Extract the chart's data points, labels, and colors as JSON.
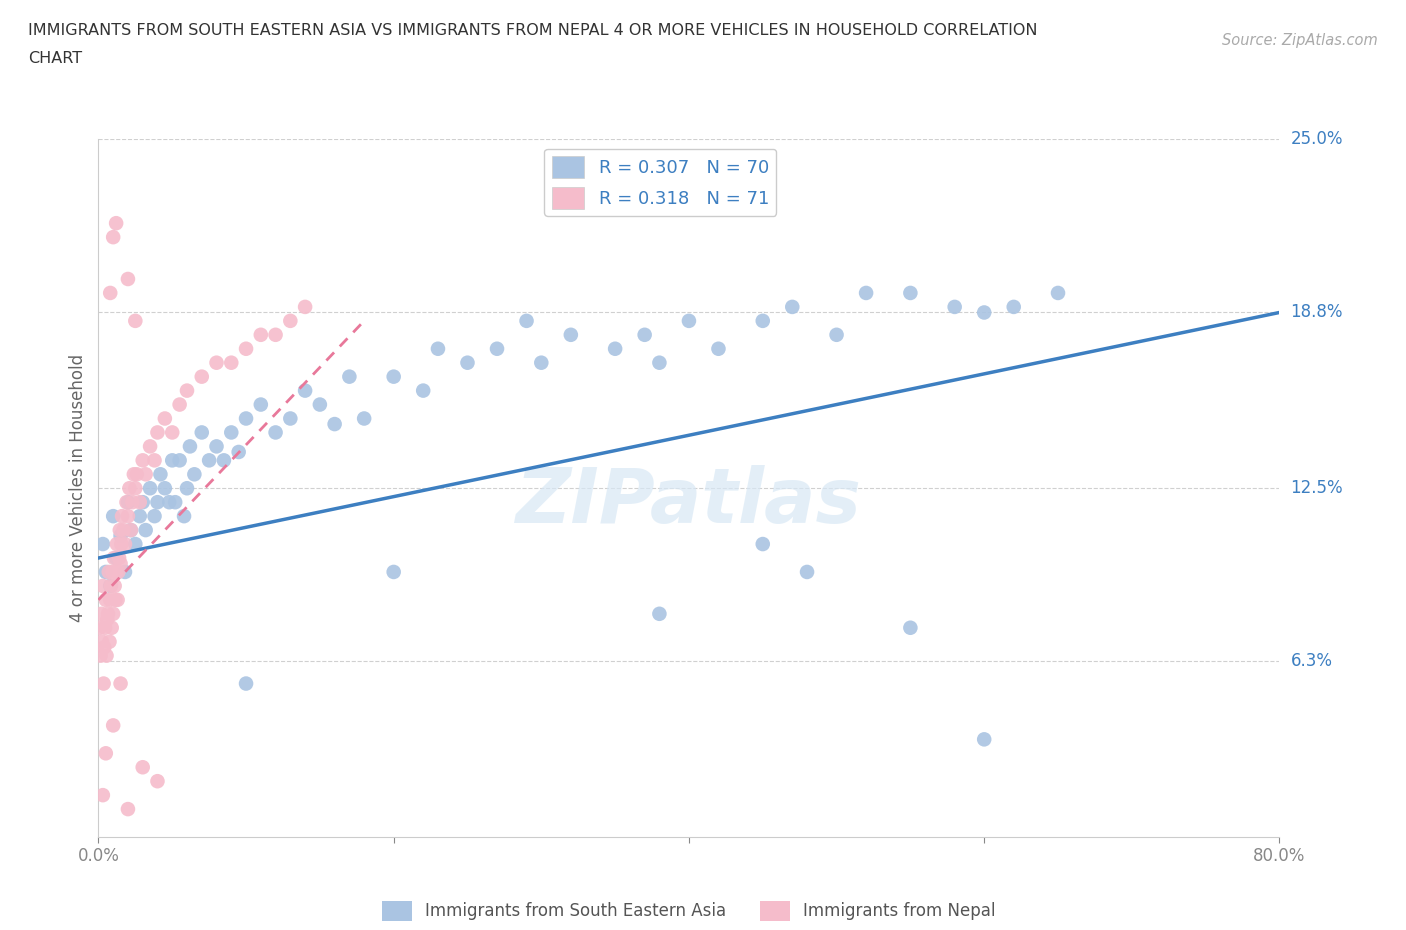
{
  "title_line1": "IMMIGRANTS FROM SOUTH EASTERN ASIA VS IMMIGRANTS FROM NEPAL 4 OR MORE VEHICLES IN HOUSEHOLD CORRELATION",
  "title_line2": "CHART",
  "source_text": "Source: ZipAtlas.com",
  "ylabel": "4 or more Vehicles in Household",
  "xlim": [
    0.0,
    80.0
  ],
  "ylim": [
    0.0,
    25.0
  ],
  "ytick_labels_right": [
    "25.0%",
    "18.8%",
    "12.5%",
    "6.3%"
  ],
  "ytick_values_right": [
    25.0,
    18.8,
    12.5,
    6.3
  ],
  "watermark": "ZIPatlas",
  "r_blue": 0.307,
  "n_blue": 70,
  "r_pink": 0.318,
  "n_pink": 71,
  "blue_color": "#aac4e2",
  "pink_color": "#f5bccb",
  "blue_line_color": "#3d7fc1",
  "pink_line_color": "#e8789a",
  "legend_label_blue": "Immigrants from South Eastern Asia",
  "legend_label_pink": "Immigrants from Nepal",
  "blue_trend": [
    10.0,
    18.8
  ],
  "pink_trend_x": [
    0,
    18
  ],
  "pink_trend_y": [
    8.5,
    18.5
  ],
  "blue_scatter_x": [
    0.3,
    0.5,
    0.8,
    1.0,
    1.2,
    1.5,
    1.8,
    2.0,
    2.2,
    2.5,
    2.8,
    3.0,
    3.2,
    3.5,
    3.8,
    4.0,
    4.2,
    4.5,
    4.8,
    5.0,
    5.2,
    5.5,
    5.8,
    6.0,
    6.2,
    6.5,
    7.0,
    7.5,
    8.0,
    8.5,
    9.0,
    9.5,
    10.0,
    11.0,
    12.0,
    13.0,
    14.0,
    15.0,
    16.0,
    17.0,
    18.0,
    20.0,
    22.0,
    23.0,
    25.0,
    27.0,
    29.0,
    30.0,
    32.0,
    35.0,
    37.0,
    38.0,
    40.0,
    42.0,
    45.0,
    47.0,
    50.0,
    52.0,
    55.0,
    58.0,
    60.0,
    62.0,
    65.0,
    48.0,
    45.0,
    55.0,
    38.0,
    20.0,
    10.0,
    60.0
  ],
  "blue_scatter_y": [
    10.5,
    9.5,
    9.0,
    11.5,
    10.0,
    10.8,
    9.5,
    12.0,
    11.0,
    10.5,
    11.5,
    12.0,
    11.0,
    12.5,
    11.5,
    12.0,
    13.0,
    12.5,
    12.0,
    13.5,
    12.0,
    13.5,
    11.5,
    12.5,
    14.0,
    13.0,
    14.5,
    13.5,
    14.0,
    13.5,
    14.5,
    13.8,
    15.0,
    15.5,
    14.5,
    15.0,
    16.0,
    15.5,
    14.8,
    16.5,
    15.0,
    16.5,
    16.0,
    17.5,
    17.0,
    17.5,
    18.5,
    17.0,
    18.0,
    17.5,
    18.0,
    17.0,
    18.5,
    17.5,
    18.5,
    19.0,
    18.0,
    19.5,
    19.5,
    19.0,
    18.8,
    19.0,
    19.5,
    9.5,
    10.5,
    7.5,
    8.0,
    9.5,
    5.5,
    3.5
  ],
  "pink_scatter_x": [
    0.1,
    0.15,
    0.2,
    0.25,
    0.3,
    0.35,
    0.4,
    0.45,
    0.5,
    0.55,
    0.6,
    0.65,
    0.7,
    0.75,
    0.8,
    0.85,
    0.9,
    0.95,
    1.0,
    1.05,
    1.1,
    1.15,
    1.2,
    1.25,
    1.3,
    1.35,
    1.4,
    1.45,
    1.5,
    1.55,
    1.6,
    1.7,
    1.8,
    1.9,
    2.0,
    2.1,
    2.2,
    2.3,
    2.4,
    2.5,
    2.6,
    2.8,
    3.0,
    3.2,
    3.5,
    3.8,
    4.0,
    4.5,
    5.0,
    5.5,
    6.0,
    7.0,
    8.0,
    9.0,
    10.0,
    11.0,
    12.0,
    13.0,
    14.0,
    1.0,
    0.5,
    1.5,
    2.0,
    0.8,
    1.2,
    3.0,
    2.5,
    4.0,
    1.0,
    2.0,
    0.3
  ],
  "pink_scatter_y": [
    7.5,
    6.5,
    8.0,
    7.0,
    9.0,
    5.5,
    6.8,
    7.5,
    8.5,
    6.5,
    7.8,
    8.0,
    9.5,
    7.0,
    8.5,
    9.0,
    7.5,
    9.5,
    8.0,
    10.0,
    9.0,
    8.5,
    9.5,
    10.5,
    8.5,
    9.5,
    10.0,
    11.0,
    9.8,
    10.5,
    11.5,
    11.0,
    10.5,
    12.0,
    11.5,
    12.5,
    11.0,
    12.0,
    13.0,
    12.5,
    13.0,
    12.0,
    13.5,
    13.0,
    14.0,
    13.5,
    14.5,
    15.0,
    14.5,
    15.5,
    16.0,
    16.5,
    17.0,
    17.0,
    17.5,
    18.0,
    18.0,
    18.5,
    19.0,
    4.0,
    3.0,
    5.5,
    20.0,
    19.5,
    22.0,
    2.5,
    18.5,
    2.0,
    21.5,
    1.0,
    1.5
  ]
}
